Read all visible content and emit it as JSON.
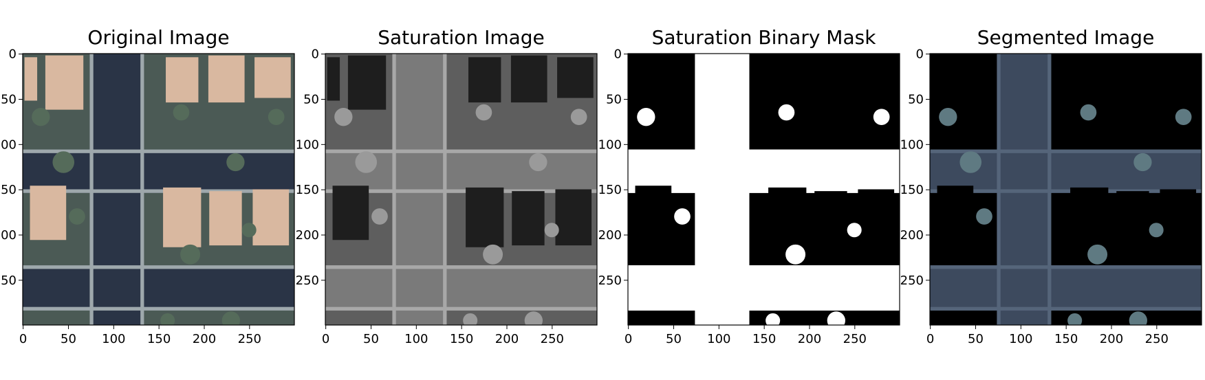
{
  "chart_data": [
    {
      "type": "image",
      "title": "Original Image",
      "xticks": [
        0,
        50,
        100,
        150,
        200,
        250
      ],
      "yticks": [
        0,
        50,
        100,
        150,
        200,
        250
      ],
      "xlim": [
        0,
        299
      ],
      "ylim": [
        299,
        0
      ],
      "colors": {
        "road": "#2a3446",
        "roof": "#d9b8a0",
        "yard": "#4b5a55",
        "tree": "#556b5a",
        "sidewalk": "#9ea8ac"
      }
    },
    {
      "type": "image",
      "title": "Saturation Image",
      "xticks": [
        0,
        50,
        100,
        150,
        200,
        250
      ],
      "yticks": [
        0,
        50,
        100,
        150,
        200,
        250
      ],
      "xlim": [
        0,
        299
      ],
      "ylim": [
        299,
        0
      ],
      "colors": {
        "road": "#7a7a7a",
        "roof": "#1e1e1e",
        "yard": "#5e5e5e",
        "tree": "#9a9a9a",
        "sidewalk": "#a8a8a8"
      }
    },
    {
      "type": "image",
      "title": "Saturation Binary Mask",
      "xticks": [
        0,
        50,
        100,
        150,
        200,
        250
      ],
      "yticks": [
        0,
        50,
        100,
        150,
        200,
        250
      ],
      "xlim": [
        0,
        299
      ],
      "ylim": [
        299,
        0
      ],
      "colors": {
        "road": "#ffffff",
        "roof": "#000000",
        "yard": "#000000",
        "tree": "#ffffff",
        "sidewalk": "#ffffff"
      }
    },
    {
      "type": "image",
      "title": "Segmented Image",
      "xticks": [
        0,
        50,
        100,
        150,
        200,
        250
      ],
      "yticks": [
        0,
        50,
        100,
        150,
        200,
        250
      ],
      "xlim": [
        0,
        299
      ],
      "ylim": [
        299,
        0
      ],
      "colors": {
        "road": "#3d4a5e",
        "roof": "#000000",
        "yard": "#000000",
        "tree": "#5f7a82",
        "sidewalk": "#55657a"
      }
    }
  ]
}
